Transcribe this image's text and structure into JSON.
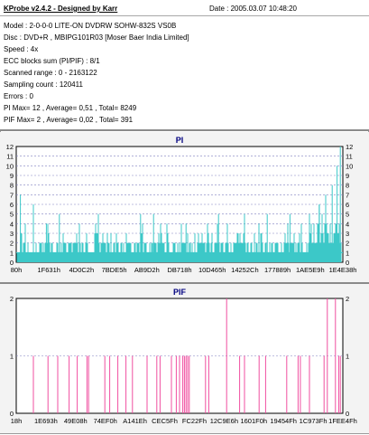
{
  "info": {
    "title": "KProbe v2.4.2 - Designed by Karr",
    "date": "Date : 2005.03.07 10:48:20",
    "lines": [
      "Model : 2-0-0-0 LITE-ON DVDRW SOHW-832S  VS0B",
      "Disc : DVD+R , MBIPG101R03 [Moser Baer India Limited]",
      "Speed : 4x",
      "ECC blocks sum (PI/PIF) : 8/1",
      "Scanned range : 0 - 2163122",
      "Sampling count : 120411",
      "Errors : 0",
      "PI Max= 12 , Average= 0,51 , Total= 8249",
      "PIF Max= 2 , Average= 0,02 , Total= 391"
    ]
  },
  "chart_data": [
    {
      "type": "bar",
      "title": "PI",
      "ylim": [
        0,
        12
      ],
      "yticks": [
        0,
        1,
        2,
        3,
        4,
        5,
        6,
        7,
        8,
        9,
        10,
        11,
        12
      ],
      "xticks": [
        "80h",
        "1F631h",
        "4D0C2h",
        "7BDE5h",
        "AB9D2h",
        "DB718h",
        "10D465h",
        "14252Ch",
        "177889h",
        "1AE5E9h",
        "1E4E38h"
      ],
      "series_color": "#3cc8c8",
      "grid": true,
      "summary": {
        "max": 12,
        "average": 0.51,
        "total": 8249
      },
      "notable_spikes": [
        {
          "pos": 0.01,
          "value": 7
        },
        {
          "pos": 0.05,
          "value": 6
        },
        {
          "pos": 0.09,
          "value": 4
        },
        {
          "pos": 0.13,
          "value": 5
        },
        {
          "pos": 0.25,
          "value": 5
        },
        {
          "pos": 0.38,
          "value": 5
        },
        {
          "pos": 0.42,
          "value": 5
        },
        {
          "pos": 0.52,
          "value": 4
        },
        {
          "pos": 0.62,
          "value": 5
        },
        {
          "pos": 0.7,
          "value": 5
        },
        {
          "pos": 0.77,
          "value": 5
        },
        {
          "pos": 0.84,
          "value": 5
        },
        {
          "pos": 0.9,
          "value": 5
        },
        {
          "pos": 0.93,
          "value": 6
        },
        {
          "pos": 0.95,
          "value": 7
        },
        {
          "pos": 0.97,
          "value": 8
        },
        {
          "pos": 0.985,
          "value": 10
        },
        {
          "pos": 0.995,
          "value": 12
        }
      ]
    },
    {
      "type": "bar",
      "title": "PIF",
      "ylim": [
        0,
        2
      ],
      "yticks": [
        0,
        1,
        2
      ],
      "xticks": [
        "18h",
        "1E693h",
        "49E08h",
        "74EF0h",
        "A141Eh",
        "CEC5Fh",
        "FC22Fh",
        "12C9E6h",
        "1601F0h",
        "19454Fh",
        "1C973Fh",
        "1FEE4Fh"
      ],
      "series_color": "#f04fa0",
      "grid": true,
      "summary": {
        "max": 2,
        "average": 0.02,
        "total": 391
      },
      "bars": [
        {
          "pos": 0.05,
          "value": 1
        },
        {
          "pos": 0.095,
          "value": 1
        },
        {
          "pos": 0.125,
          "value": 1
        },
        {
          "pos": 0.16,
          "value": 1
        },
        {
          "pos": 0.185,
          "value": 1
        },
        {
          "pos": 0.215,
          "value": 1
        },
        {
          "pos": 0.22,
          "value": 1
        },
        {
          "pos": 0.27,
          "value": 1
        },
        {
          "pos": 0.285,
          "value": 1
        },
        {
          "pos": 0.31,
          "value": 1
        },
        {
          "pos": 0.335,
          "value": 1
        },
        {
          "pos": 0.355,
          "value": 1
        },
        {
          "pos": 0.4,
          "value": 1
        },
        {
          "pos": 0.43,
          "value": 1
        },
        {
          "pos": 0.44,
          "value": 1
        },
        {
          "pos": 0.475,
          "value": 1
        },
        {
          "pos": 0.49,
          "value": 1
        },
        {
          "pos": 0.5,
          "value": 1
        },
        {
          "pos": 0.51,
          "value": 1
        },
        {
          "pos": 0.515,
          "value": 1
        },
        {
          "pos": 0.52,
          "value": 1
        },
        {
          "pos": 0.525,
          "value": 1
        },
        {
          "pos": 0.53,
          "value": 1
        },
        {
          "pos": 0.58,
          "value": 1
        },
        {
          "pos": 0.59,
          "value": 1
        },
        {
          "pos": 0.645,
          "value": 2
        },
        {
          "pos": 0.685,
          "value": 1
        },
        {
          "pos": 0.7,
          "value": 1
        },
        {
          "pos": 0.745,
          "value": 1
        },
        {
          "pos": 0.765,
          "value": 1
        },
        {
          "pos": 0.83,
          "value": 1
        },
        {
          "pos": 0.865,
          "value": 1
        },
        {
          "pos": 0.872,
          "value": 1
        },
        {
          "pos": 0.9,
          "value": 1
        },
        {
          "pos": 0.945,
          "value": 1
        },
        {
          "pos": 0.955,
          "value": 2
        },
        {
          "pos": 0.98,
          "value": 2
        },
        {
          "pos": 0.99,
          "value": 1
        },
        {
          "pos": 0.995,
          "value": 1
        }
      ]
    }
  ]
}
